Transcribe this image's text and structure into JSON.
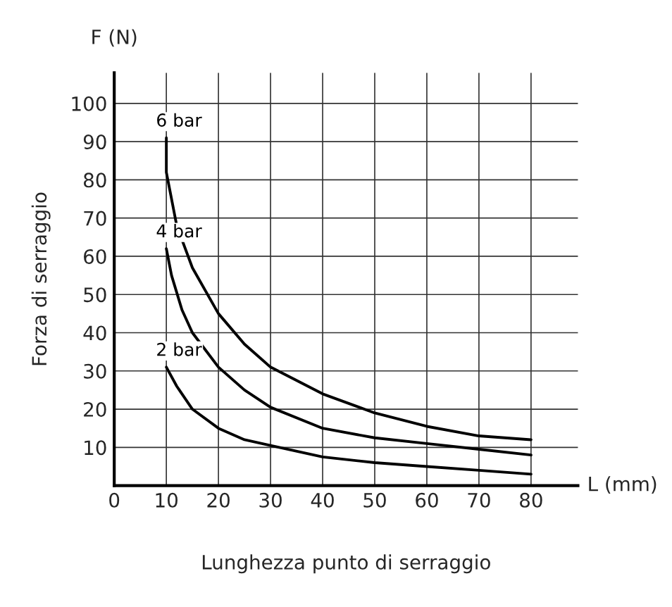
{
  "chart_data": {
    "type": "line",
    "xlabel": "Lunghezza punto di serraggio",
    "ylabel": "Forza di serraggio",
    "annotations": [
      "F (N)",
      "L (mm)"
    ],
    "xlim": [
      0,
      89
    ],
    "xticks": [
      0,
      10,
      20,
      30,
      40,
      50,
      60,
      70,
      80
    ],
    "ylim": [
      0,
      108
    ],
    "yticks": [
      10,
      20,
      30,
      40,
      50,
      60,
      70,
      80,
      90,
      100
    ],
    "grid": true,
    "marker": "none",
    "line_style": "solid",
    "series": [
      {
        "name": "6 bar",
        "color": "#000000",
        "x": [
          10,
          10,
          12,
          15,
          20,
          25,
          30,
          40,
          50,
          60,
          70,
          80
        ],
        "values": [
          91,
          82,
          68,
          57,
          45,
          37,
          31,
          24,
          19,
          15.5,
          13,
          12
        ]
      },
      {
        "name": "4 bar",
        "color": "#000000",
        "x": [
          10,
          11,
          13,
          15,
          20,
          25,
          30,
          40,
          50,
          60,
          70,
          80
        ],
        "values": [
          62,
          55,
          46,
          40,
          31,
          25,
          20.5,
          15,
          12.5,
          11,
          9.5,
          8
        ]
      },
      {
        "name": "2 bar",
        "color": "#000000",
        "x": [
          10,
          12,
          15,
          20,
          25,
          30,
          40,
          50,
          60,
          70,
          80
        ],
        "values": [
          31,
          26,
          20,
          15,
          12,
          10.5,
          7.5,
          6,
          5,
          4,
          3
        ]
      }
    ]
  }
}
